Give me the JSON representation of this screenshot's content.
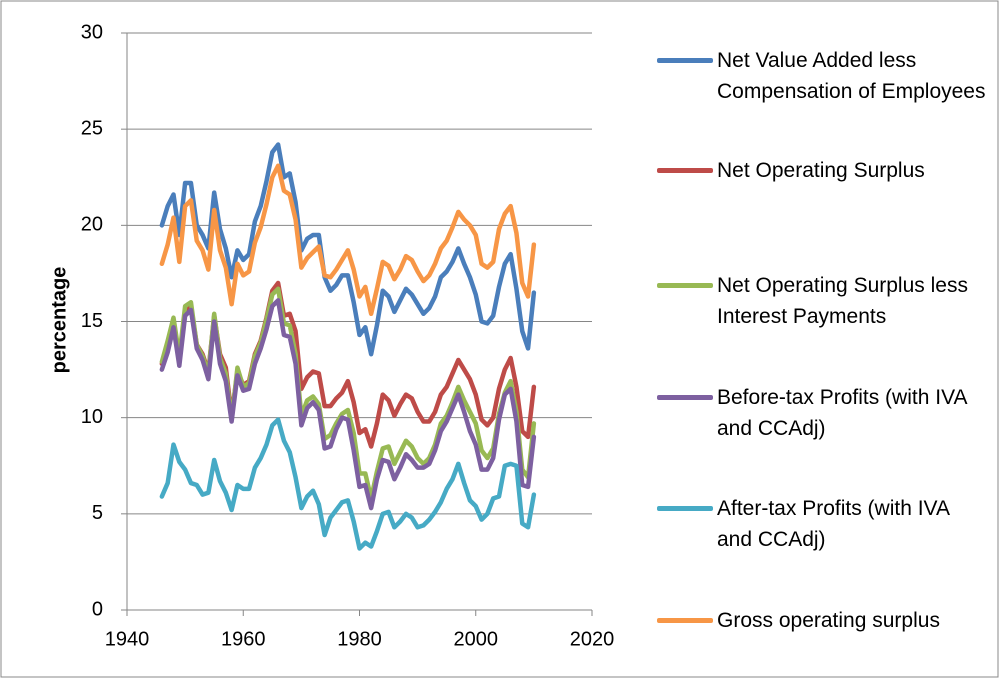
{
  "chart_data": {
    "type": "line",
    "y_label": "percentage",
    "x": [
      1946,
      1947,
      1948,
      1949,
      1950,
      1951,
      1952,
      1953,
      1954,
      1955,
      1956,
      1957,
      1958,
      1959,
      1960,
      1961,
      1962,
      1963,
      1964,
      1965,
      1966,
      1967,
      1968,
      1969,
      1970,
      1971,
      1972,
      1973,
      1974,
      1975,
      1976,
      1977,
      1978,
      1979,
      1980,
      1981,
      1982,
      1983,
      1984,
      1985,
      1986,
      1987,
      1988,
      1989,
      1990,
      1991,
      1992,
      1993,
      1994,
      1995,
      1996,
      1997,
      1998,
      1999,
      2000,
      2001,
      2002,
      2003,
      2004,
      2005,
      2006,
      2007,
      2008,
      2009,
      2010
    ],
    "xlim": [
      1940,
      2020
    ],
    "xticks": [
      1940,
      1960,
      1980,
      2000,
      2020
    ],
    "ylim": [
      0,
      30
    ],
    "yticks": [
      0,
      5,
      10,
      15,
      20,
      25,
      30
    ],
    "grid": true,
    "legend": "right",
    "series": [
      {
        "name": "Net Value Added less Compensation of Employees",
        "color": "#4a7ebb",
        "values": [
          20.0,
          21.0,
          21.6,
          19.5,
          22.2,
          22.2,
          20.0,
          19.5,
          18.8,
          21.7,
          19.8,
          18.8,
          17.3,
          18.7,
          18.2,
          18.5,
          20.2,
          21.0,
          22.3,
          23.8,
          24.2,
          22.5,
          22.7,
          21.2,
          18.7,
          19.3,
          19.5,
          19.5,
          17.3,
          16.6,
          16.9,
          17.4,
          17.4,
          16.0,
          14.3,
          14.7,
          13.3,
          14.8,
          16.6,
          16.3,
          15.5,
          16.1,
          16.7,
          16.4,
          15.9,
          15.4,
          15.7,
          16.3,
          17.3,
          17.6,
          18.1,
          18.8,
          18.0,
          17.3,
          16.4,
          15.0,
          14.9,
          15.3,
          16.8,
          18.0,
          18.5,
          16.7,
          14.5,
          13.6,
          16.5
        ]
      },
      {
        "name": "Net Operating Surplus",
        "color": "#be4b48",
        "values": [
          12.8,
          13.8,
          15.0,
          13.0,
          15.6,
          15.8,
          13.8,
          13.3,
          12.4,
          15.3,
          13.3,
          12.6,
          10.1,
          12.4,
          11.7,
          11.9,
          13.3,
          14.0,
          15.2,
          16.6,
          17.0,
          15.3,
          15.4,
          14.5,
          11.5,
          12.1,
          12.4,
          12.3,
          10.6,
          10.6,
          11.0,
          11.3,
          11.9,
          10.8,
          9.2,
          9.4,
          8.5,
          9.7,
          11.2,
          10.9,
          10.1,
          10.7,
          11.2,
          11.0,
          10.3,
          9.8,
          9.8,
          10.3,
          11.2,
          11.6,
          12.3,
          13.0,
          12.5,
          12.0,
          11.2,
          9.9,
          9.6,
          10.0,
          11.5,
          12.5,
          13.1,
          11.6,
          9.3,
          9.0,
          11.6
        ]
      },
      {
        "name": "Net Operating Surplus less Interest Payments",
        "color": "#98b954",
        "values": [
          12.9,
          14.0,
          15.2,
          13.2,
          15.8,
          16.0,
          13.8,
          13.2,
          12.3,
          15.4,
          13.1,
          12.3,
          9.9,
          12.6,
          11.6,
          11.8,
          13.2,
          13.9,
          15.1,
          16.4,
          16.7,
          14.9,
          14.8,
          13.3,
          10.1,
          10.9,
          11.1,
          10.7,
          8.9,
          9.1,
          9.7,
          10.2,
          10.4,
          9.2,
          7.1,
          7.1,
          5.8,
          7.2,
          8.4,
          8.5,
          7.6,
          8.2,
          8.8,
          8.5,
          7.9,
          7.6,
          7.9,
          8.6,
          9.7,
          10.1,
          10.8,
          11.6,
          10.9,
          10.3,
          9.7,
          8.3,
          7.9,
          8.4,
          10.2,
          11.3,
          11.9,
          10.3,
          7.3,
          6.9,
          9.7
        ]
      },
      {
        "name": "Before-tax Profits (with IVA and CCAdj)",
        "color": "#7d60a0",
        "values": [
          12.5,
          13.4,
          14.7,
          12.7,
          15.3,
          15.6,
          13.6,
          13.0,
          12.0,
          15.0,
          12.8,
          11.9,
          9.8,
          12.2,
          11.4,
          11.5,
          12.8,
          13.6,
          14.6,
          15.8,
          16.1,
          14.3,
          14.2,
          12.8,
          9.6,
          10.5,
          10.8,
          10.4,
          8.4,
          8.5,
          9.4,
          10.0,
          9.9,
          8.3,
          6.4,
          6.5,
          5.3,
          6.8,
          7.8,
          7.7,
          6.8,
          7.4,
          8.1,
          7.8,
          7.4,
          7.4,
          7.6,
          8.3,
          9.3,
          9.8,
          10.5,
          11.2,
          10.3,
          9.3,
          8.6,
          7.3,
          7.3,
          7.9,
          9.9,
          11.2,
          11.5,
          9.8,
          6.5,
          6.4,
          9.0
        ]
      },
      {
        "name": "After-tax Profits (with IVA and CCAdj)",
        "color": "#46aac5",
        "values": [
          5.9,
          6.6,
          8.6,
          7.7,
          7.3,
          6.6,
          6.5,
          6.0,
          6.1,
          7.8,
          6.7,
          6.1,
          5.2,
          6.5,
          6.3,
          6.3,
          7.4,
          7.9,
          8.6,
          9.6,
          9.9,
          8.8,
          8.2,
          6.9,
          5.3,
          5.9,
          6.2,
          5.5,
          3.9,
          4.8,
          5.2,
          5.6,
          5.7,
          4.6,
          3.2,
          3.5,
          3.3,
          4.1,
          5.0,
          5.1,
          4.3,
          4.6,
          5.0,
          4.8,
          4.3,
          4.4,
          4.7,
          5.1,
          5.6,
          6.3,
          6.8,
          7.6,
          6.6,
          5.7,
          5.4,
          4.7,
          5.0,
          5.8,
          5.9,
          7.5,
          7.6,
          7.5,
          4.5,
          4.3,
          6.0
        ]
      },
      {
        "name": "Gross operating surplus",
        "color": "#f79646",
        "values": [
          18.0,
          19.0,
          20.4,
          18.1,
          21.0,
          21.3,
          19.2,
          18.7,
          17.7,
          20.8,
          18.7,
          17.8,
          15.9,
          18.0,
          17.4,
          17.6,
          19.1,
          19.9,
          21.1,
          22.5,
          23.1,
          21.8,
          21.6,
          20.3,
          17.8,
          18.3,
          18.6,
          18.9,
          17.4,
          17.3,
          17.7,
          18.2,
          18.7,
          17.7,
          16.3,
          16.8,
          15.4,
          16.7,
          18.1,
          17.9,
          17.2,
          17.7,
          18.4,
          18.2,
          17.6,
          17.1,
          17.4,
          18.0,
          18.8,
          19.2,
          19.9,
          20.7,
          20.3,
          20.0,
          19.5,
          18.0,
          17.8,
          18.1,
          19.8,
          20.6,
          21.0,
          19.6,
          17.0,
          16.3,
          19.0
        ]
      }
    ]
  }
}
